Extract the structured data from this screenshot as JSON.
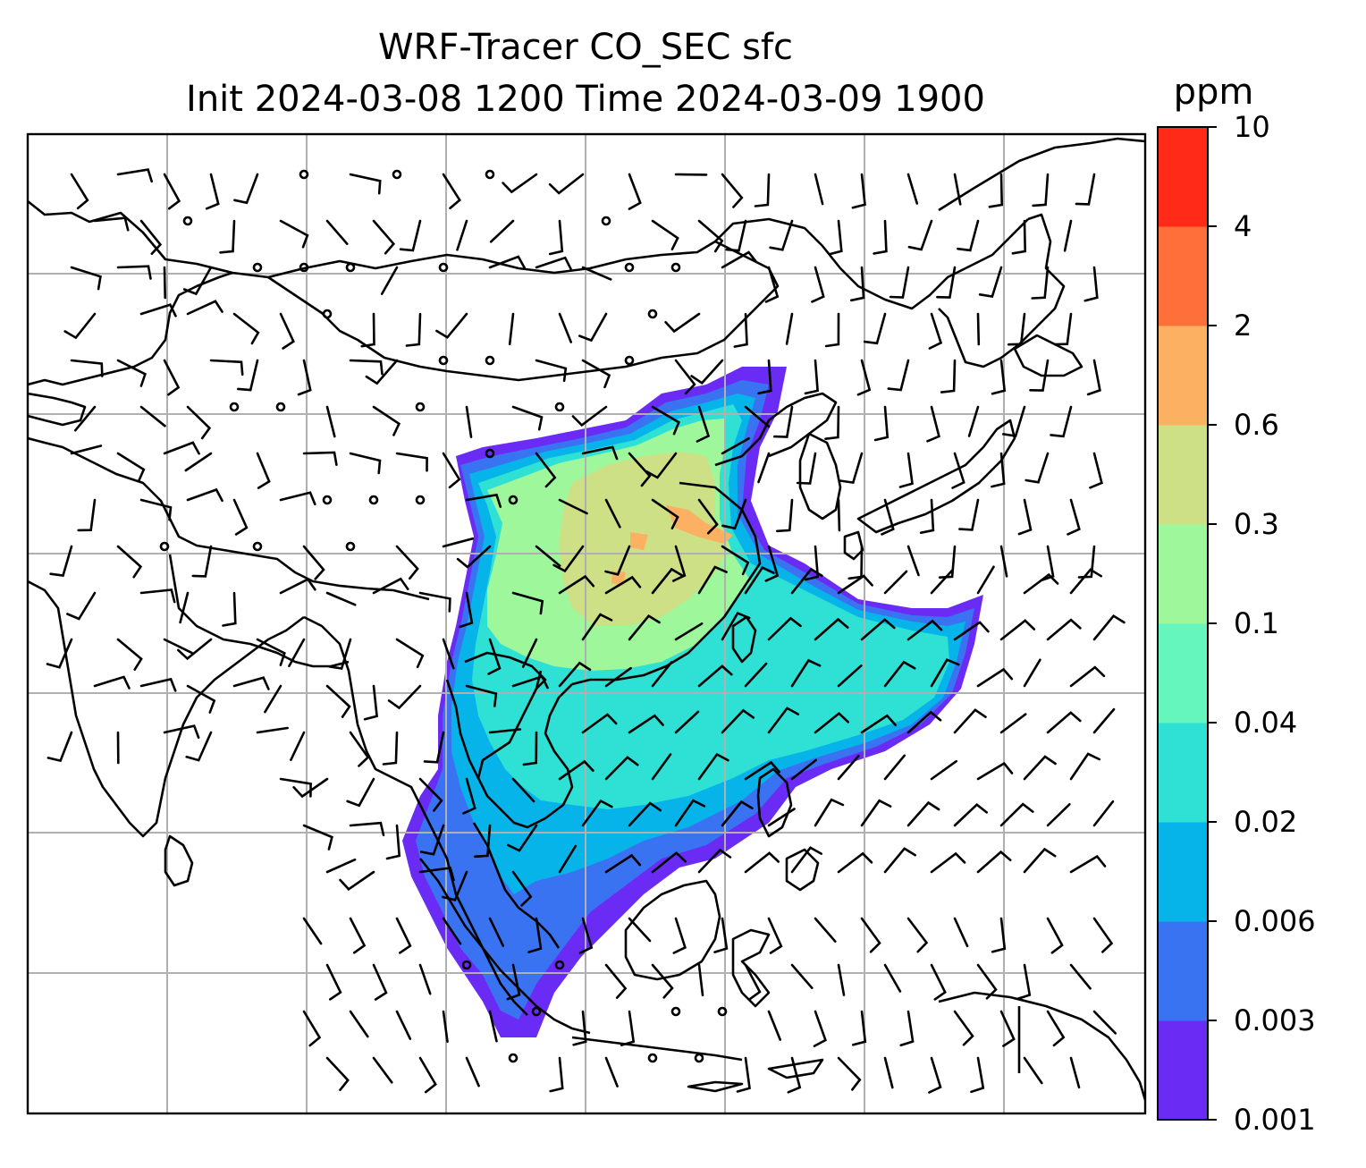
{
  "title": {
    "line1": "WRF-Tracer CO_SEC sfc",
    "line2": "Init 2024-03-08 1200 Time 2024-03-09 1900"
  },
  "colorbar": {
    "unit": "ppm",
    "levels": [
      "0.001",
      "0.003",
      "0.006",
      "0.02",
      "0.04",
      "0.1",
      "0.3",
      "0.6",
      "2",
      "4",
      "10"
    ],
    "colors": [
      "#6a2cf5",
      "#3a73f2",
      "#06b4ea",
      "#2fe0d4",
      "#64f6bc",
      "#9ef79a",
      "#cde085",
      "#fbb062",
      "#ff6f3a",
      "#ff2a17"
    ]
  },
  "map_features": {
    "gridlines": "on",
    "coastlines": "on",
    "wind_barbs": "on",
    "tracer_plume_colors": {
      "edge": "#6a2cf5",
      "outer": "#3a73f2",
      "mid": "#06b4ea",
      "inner": "#2fe0d4",
      "core": "#9ef79a",
      "peak": "#cde085",
      "max": "#fbb062"
    }
  }
}
